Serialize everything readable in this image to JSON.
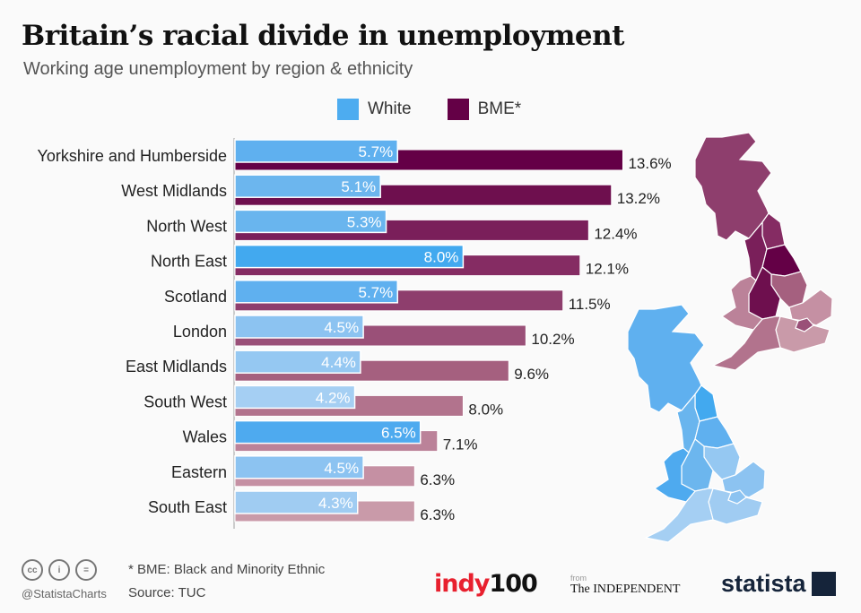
{
  "title": "Britain’s racial divide in unemployment",
  "subtitle": "Working age unemployment by region & ethnicity",
  "chart_data": {
    "type": "bar",
    "orientation": "horizontal",
    "categories": [
      "Yorkshire and Humberside",
      "West Midlands",
      "North West",
      "North East",
      "Scotland",
      "London",
      "East Midlands",
      "South West",
      "Wales",
      "Eastern",
      "South East"
    ],
    "series": [
      {
        "name": "White",
        "values": [
          5.7,
          5.1,
          5.3,
          8.0,
          5.7,
          4.5,
          4.4,
          4.2,
          6.5,
          4.5,
          4.3
        ],
        "labels": [
          "5.7%",
          "5.1%",
          "5.3%",
          "8.0%",
          "5.7%",
          "4.5%",
          "4.4%",
          "4.2%",
          "6.5%",
          "4.5%",
          "4.3%"
        ],
        "colors": [
          "#5fb0ef",
          "#6cb6ee",
          "#69b5ee",
          "#42a9ef",
          "#5fb0ef",
          "#8cc3f1",
          "#95c8f2",
          "#a5cff3",
          "#4eaaef",
          "#8cc3f1",
          "#a0ccf2"
        ]
      },
      {
        "name": "BME*",
        "values": [
          13.6,
          13.2,
          12.4,
          12.1,
          11.5,
          10.2,
          9.6,
          8.0,
          7.1,
          6.3,
          6.3
        ],
        "labels": [
          "13.6%",
          "13.2%",
          "12.4%",
          "12.1%",
          "11.5%",
          "10.2%",
          "9.6%",
          "8.0%",
          "7.1%",
          "6.3%",
          "6.3%"
        ],
        "colors": [
          "#640046",
          "#6e0f4e",
          "#7a1f5a",
          "#852c63",
          "#8e3e6d",
          "#9a5078",
          "#a5607f",
          "#b2738d",
          "#bb8299",
          "#c590a3",
          "#c99aa9"
        ]
      }
    ],
    "legend_position": "top",
    "grid": false,
    "xlim": [
      0,
      14
    ]
  },
  "legend": {
    "white": "White",
    "bme": "BME*",
    "white_color": "#5fb0ef",
    "bme_color": "#640046"
  },
  "footer": {
    "note": "* BME: Black and Minority Ethnic",
    "source": "Source: TUC",
    "handle": "@StatistaCharts",
    "cc_icons": [
      "cc-icon",
      "by-icon",
      "nd-icon"
    ]
  },
  "logos": {
    "indy": "indy",
    "indy_num": "100",
    "from": "from",
    "independent": "The INDEPENDENT",
    "statista": "statista"
  }
}
